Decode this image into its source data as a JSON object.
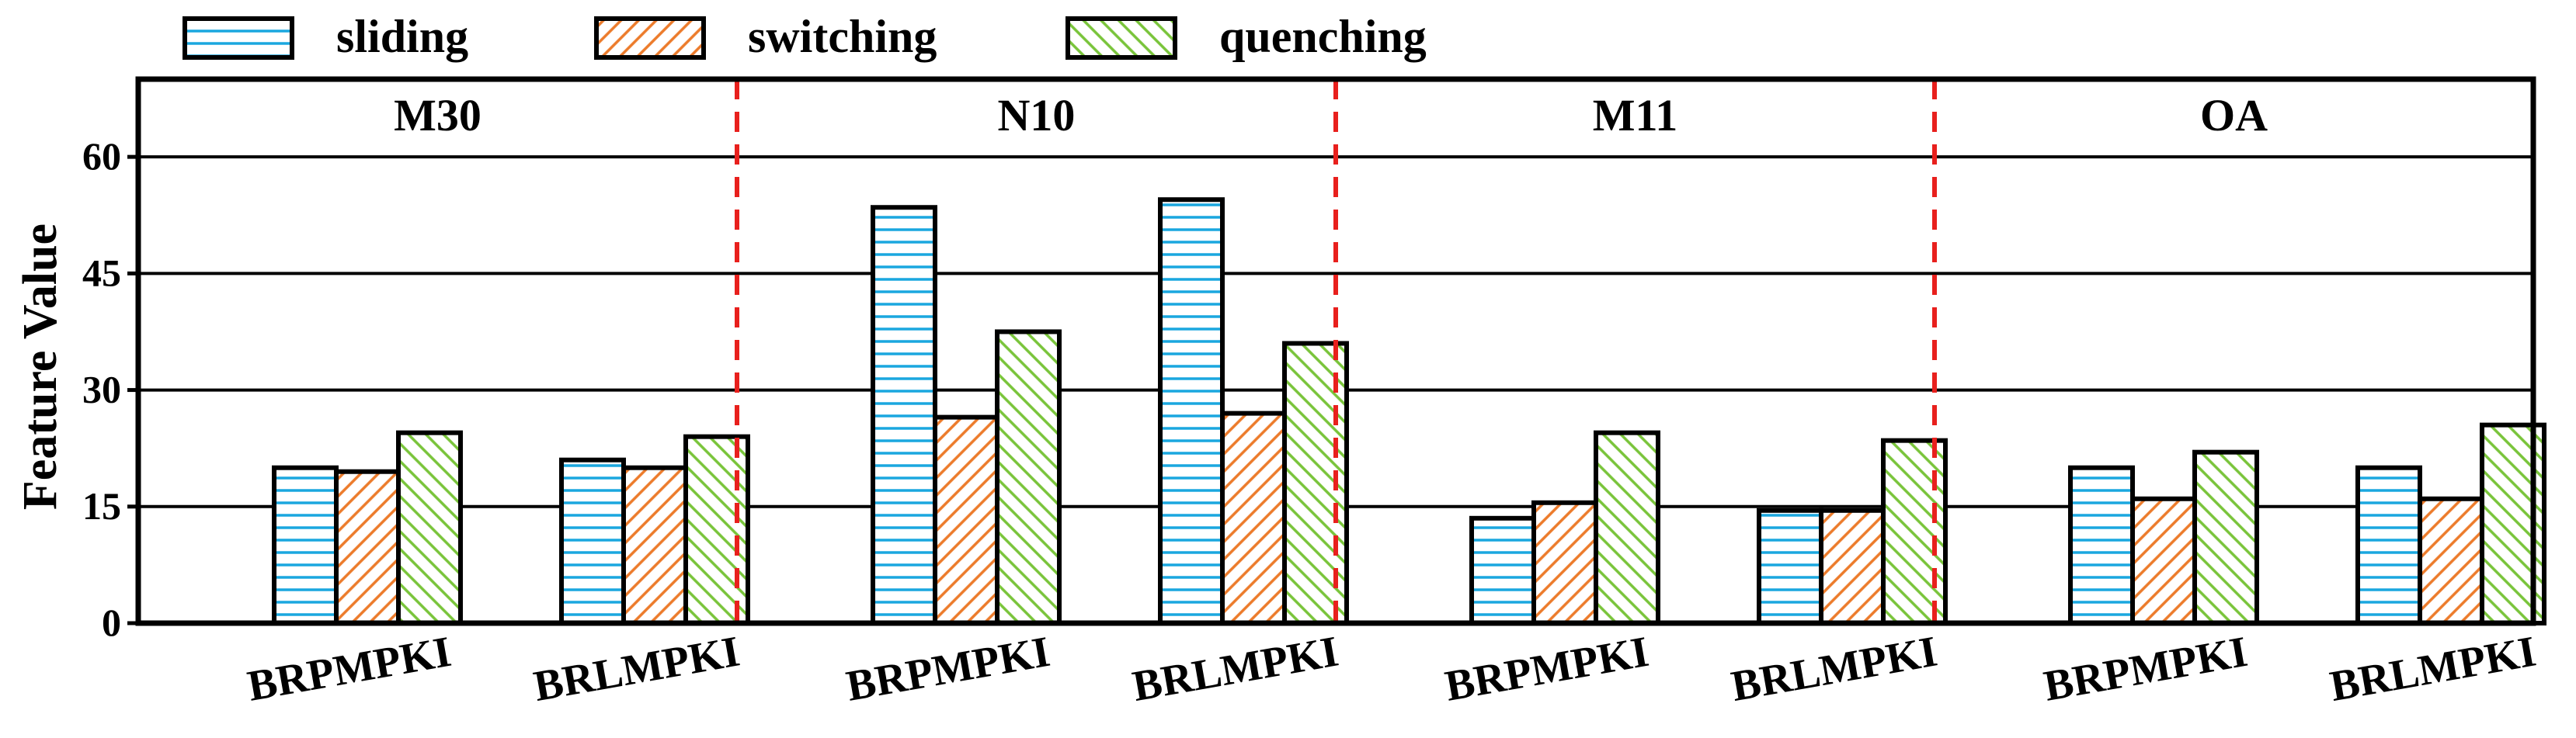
{
  "chart_data": {
    "type": "bar",
    "ylabel": "Feature Value",
    "ylim": [
      0,
      70
    ],
    "yticks": [
      0,
      15,
      30,
      45,
      60
    ],
    "grid": "horizontal",
    "legend_position": "top-left",
    "categories": [
      "BRPMPKI",
      "BRLMPKI"
    ],
    "series": [
      {
        "name": "sliding",
        "color": "#1aa7df",
        "pattern": "horizontal-lines"
      },
      {
        "name": "switching",
        "color": "#ec7b2b",
        "pattern": "diagonal-lines"
      },
      {
        "name": "quenching",
        "color": "#79c43a",
        "pattern": "diagonal-lines"
      }
    ],
    "panels": [
      {
        "label": "M30",
        "values": {
          "BRPMPKI": [
            20,
            19.5,
            24.5
          ],
          "BRLMPKI": [
            21,
            20,
            24
          ]
        }
      },
      {
        "label": "N10",
        "values": {
          "BRPMPKI": [
            53.5,
            26.5,
            37.5
          ],
          "BRLMPKI": [
            54.5,
            27,
            36
          ]
        }
      },
      {
        "label": "M11",
        "values": {
          "BRPMPKI": [
            13.5,
            15.5,
            24.5
          ],
          "BRLMPKI": [
            14.5,
            14.5,
            23.5
          ]
        }
      },
      {
        "label": "OA",
        "values": {
          "BRPMPKI": [
            20,
            16,
            22
          ],
          "BRLMPKI": [
            20,
            16,
            25.5
          ]
        }
      }
    ]
  }
}
